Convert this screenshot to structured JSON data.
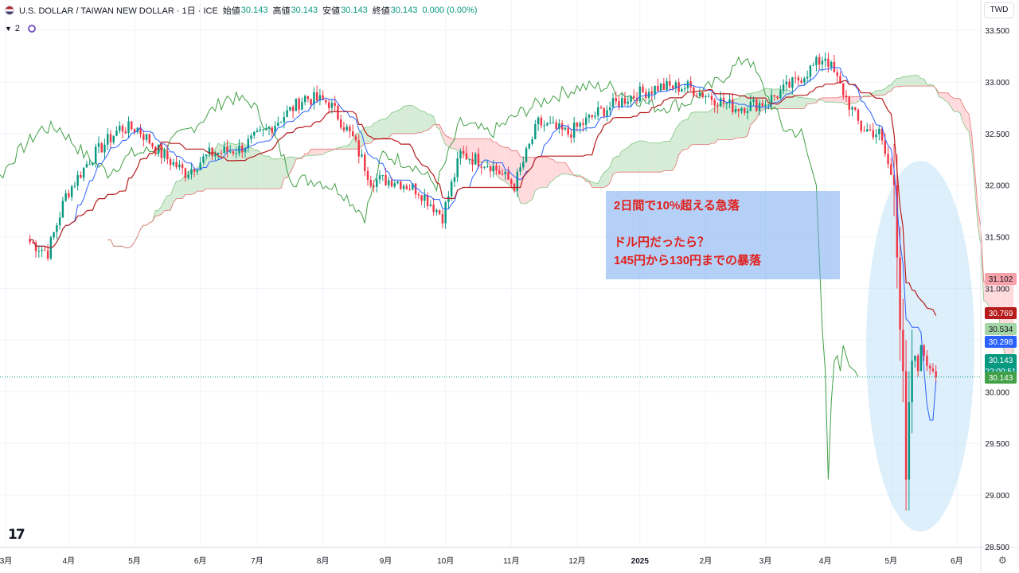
{
  "header": {
    "title": "U.S. DOLLAR / TAIWAN NEW DOLLAR · 1日 · ICE",
    "open_label": "始値",
    "open_value": "30.143",
    "high_label": "高値",
    "high_value": "30.143",
    "low_label": "安値",
    "low_value": "30.143",
    "close_label": "終値",
    "close_value": "30.143",
    "change": "0.000 (0.00%)"
  },
  "indicator_toggle": {
    "count": "2"
  },
  "currency": "TWD",
  "annotation": {
    "line1": "2日間で10%超える急落",
    "line2": "",
    "line3": "ドル円だったら？",
    "line4": "145円から130円までの暴落"
  },
  "colors": {
    "up": "#089981",
    "down": "#f23645",
    "tenkan": "#2962ff",
    "kijun": "#b71c1c",
    "chikou": "#43a047",
    "cloud_bull": "#c8e6c9",
    "cloud_bear": "#ffcdd2",
    "highlight": "#bfe1f5",
    "annotation_bg": "#78aaf0",
    "annotation_text": "#e0201c"
  },
  "icons": {
    "logo": "tradingview-logo-icon",
    "settings": "gear-icon",
    "flag": "us-flag-icon"
  },
  "chart_data": {
    "type": "candlestick",
    "title": "U.S. DOLLAR / TAIWAN NEW DOLLAR · 1日 · ICE",
    "ylim": [
      28.5,
      33.5
    ],
    "y_ticks": [
      "33.500",
      "33.000",
      "32.500",
      "32.000",
      "31.500",
      "31.000",
      "30.500",
      "30.000",
      "29.500",
      "29.000",
      "28.500"
    ],
    "x_ticks": [
      {
        "label": "3月",
        "index": -8
      },
      {
        "label": "4月",
        "index": 13
      },
      {
        "label": "5月",
        "index": 35
      },
      {
        "label": "6月",
        "index": 57
      },
      {
        "label": "7月",
        "index": 76
      },
      {
        "label": "8月",
        "index": 98
      },
      {
        "label": "9月",
        "index": 119
      },
      {
        "label": "10月",
        "index": 139
      },
      {
        "label": "11月",
        "index": 161
      },
      {
        "label": "12月",
        "index": 183
      },
      {
        "label": "2025",
        "index": 204
      },
      {
        "label": "2月",
        "index": 226
      },
      {
        "label": "3月",
        "index": 246
      },
      {
        "label": "4月",
        "index": 266
      },
      {
        "label": "5月",
        "index": 288
      },
      {
        "label": "6月",
        "index": 310
      }
    ],
    "close_anchors": [
      [
        0,
        31.45
      ],
      [
        6,
        31.35
      ],
      [
        12,
        31.9
      ],
      [
        20,
        32.25
      ],
      [
        30,
        32.55
      ],
      [
        36,
        32.55
      ],
      [
        44,
        32.3
      ],
      [
        52,
        32.12
      ],
      [
        60,
        32.3
      ],
      [
        70,
        32.35
      ],
      [
        80,
        32.55
      ],
      [
        92,
        32.85
      ],
      [
        100,
        32.8
      ],
      [
        108,
        32.45
      ],
      [
        114,
        32.05
      ],
      [
        122,
        32.05
      ],
      [
        130,
        31.95
      ],
      [
        138,
        31.7
      ],
      [
        144,
        32.3
      ],
      [
        154,
        32.2
      ],
      [
        162,
        32.0
      ],
      [
        170,
        32.6
      ],
      [
        180,
        32.5
      ],
      [
        190,
        32.7
      ],
      [
        200,
        32.85
      ],
      [
        210,
        32.95
      ],
      [
        220,
        32.95
      ],
      [
        228,
        32.85
      ],
      [
        236,
        32.75
      ],
      [
        246,
        32.8
      ],
      [
        256,
        33.0
      ],
      [
        266,
        33.25
      ],
      [
        272,
        32.9
      ],
      [
        278,
        32.55
      ],
      [
        284,
        32.5
      ],
      [
        289,
        32.0
      ],
      [
        290,
        31.3
      ],
      [
        291,
        30.6
      ],
      [
        292,
        30.2
      ],
      [
        293,
        29.15
      ],
      [
        294,
        29.9
      ],
      [
        295,
        30.3
      ],
      [
        296,
        30.35
      ],
      [
        297,
        30.2
      ],
      [
        298,
        30.45
      ],
      [
        300,
        30.25
      ],
      [
        302,
        30.2
      ],
      [
        303,
        30.14
      ]
    ],
    "last_index": 303,
    "price_labels": [
      {
        "value": "31.102",
        "price": 31.102,
        "color": "#f7a1a8",
        "text_color": "#131722"
      },
      {
        "value": "30.769",
        "price": 30.769,
        "color": "#b71c1c",
        "text_color": "#ffffff"
      },
      {
        "value": "30.534",
        "price": 30.534,
        "color": "#a5d6a7",
        "text_color": "#131722"
      },
      {
        "value": "30.298",
        "price": 30.298,
        "color": "#2962ff",
        "text_color": "#ffffff"
      },
      {
        "value": "30.143",
        "price": 30.143,
        "color": "#089981",
        "text_color": "#ffffff",
        "sub": "22:00:51"
      },
      {
        "value": "30.143",
        "price": 30.143,
        "color": "#43a047",
        "text_color": "#ffffff"
      }
    ],
    "current_price": 30.143,
    "series": [
      {
        "name": "",
        "role": "tenkan"
      },
      {
        "name": "",
        "role": "kijun"
      },
      {
        "name": "",
        "role": "chikou"
      },
      {
        "name": "",
        "role": "cloud"
      }
    ]
  }
}
